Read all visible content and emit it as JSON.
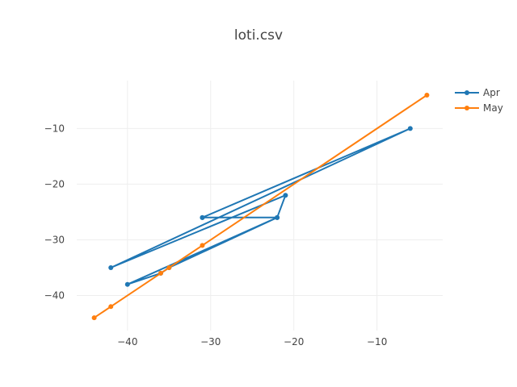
{
  "chart_data": {
    "type": "line",
    "title": "loti.csv",
    "xlabel": "",
    "ylabel": "",
    "xlim": [
      -46.1,
      -2.1
    ],
    "ylim": [
      -46.3,
      -1.4
    ],
    "x_ticks": [
      -40,
      -30,
      -20,
      -10
    ],
    "y_ticks": [
      -40,
      -30,
      -20,
      -10
    ],
    "x_tick_labels": [
      "−40",
      "−30",
      "−20",
      "−10"
    ],
    "y_tick_labels": [
      "−40",
      "−30",
      "−20",
      "−10"
    ],
    "grid": true,
    "legend_position": "top-right",
    "series": [
      {
        "name": "Apr",
        "color": "#1f77b4",
        "points": [
          {
            "x": -31,
            "y": -26
          },
          {
            "x": -22,
            "y": -26
          },
          {
            "x": -35,
            "y": -35
          },
          {
            "x": -36,
            "y": -36
          },
          {
            "x": -40,
            "y": -38
          },
          {
            "x": -22,
            "y": -26
          },
          {
            "x": -21,
            "y": -22
          },
          {
            "x": -42,
            "y": -35
          },
          {
            "x": -6,
            "y": -10
          },
          {
            "x": -31,
            "y": -26
          }
        ]
      },
      {
        "name": "May",
        "color": "#ff7f0e",
        "points": [
          {
            "x": -44,
            "y": -44
          },
          {
            "x": -42,
            "y": -42
          },
          {
            "x": -36,
            "y": -36
          },
          {
            "x": -35,
            "y": -35
          },
          {
            "x": -31,
            "y": -31
          },
          {
            "x": -4,
            "y": -4
          }
        ]
      }
    ]
  }
}
